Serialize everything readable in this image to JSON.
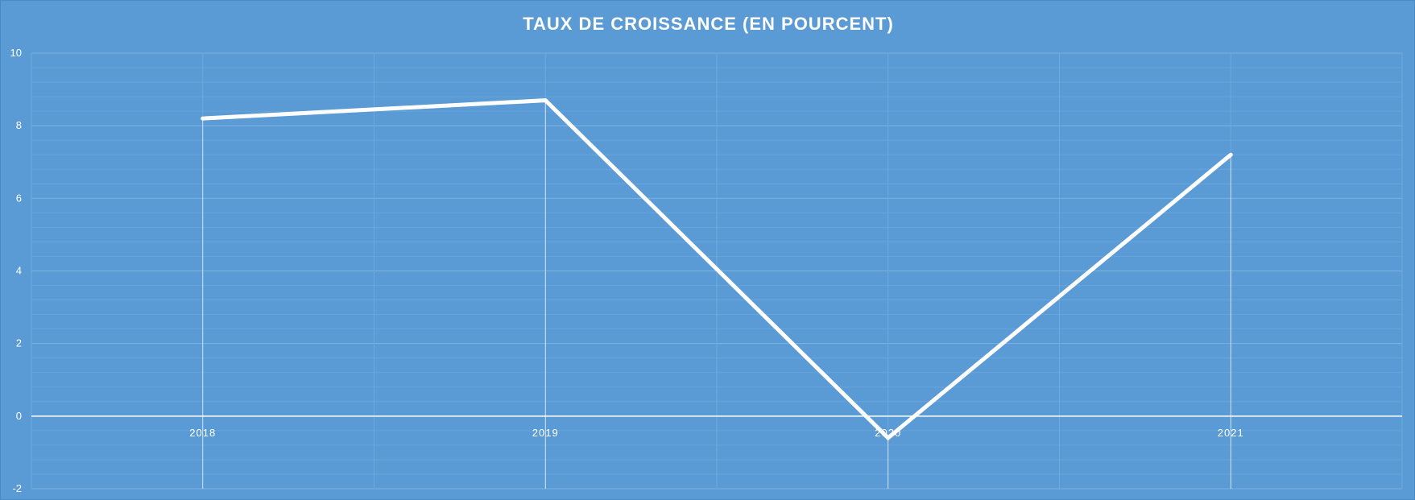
{
  "chart_data": {
    "type": "line",
    "title": "TAUX DE CROISSANCE (EN POURCENT)",
    "xlabel": "",
    "ylabel": "",
    "categories": [
      "2018",
      "2019",
      "2020",
      "2021"
    ],
    "series": [
      {
        "values": [
          8.2,
          8.7,
          -0.6,
          7.2
        ]
      }
    ],
    "ylim": [
      -2,
      10
    ],
    "yticks": [
      "10",
      "8",
      "6",
      "4",
      "2",
      "0",
      "-2"
    ],
    "drop_lines": true,
    "grid": true,
    "legend": "none",
    "colors": {
      "background": "#5b9bd5",
      "line": "#ffffff",
      "grid": "#6fa9dd"
    }
  }
}
